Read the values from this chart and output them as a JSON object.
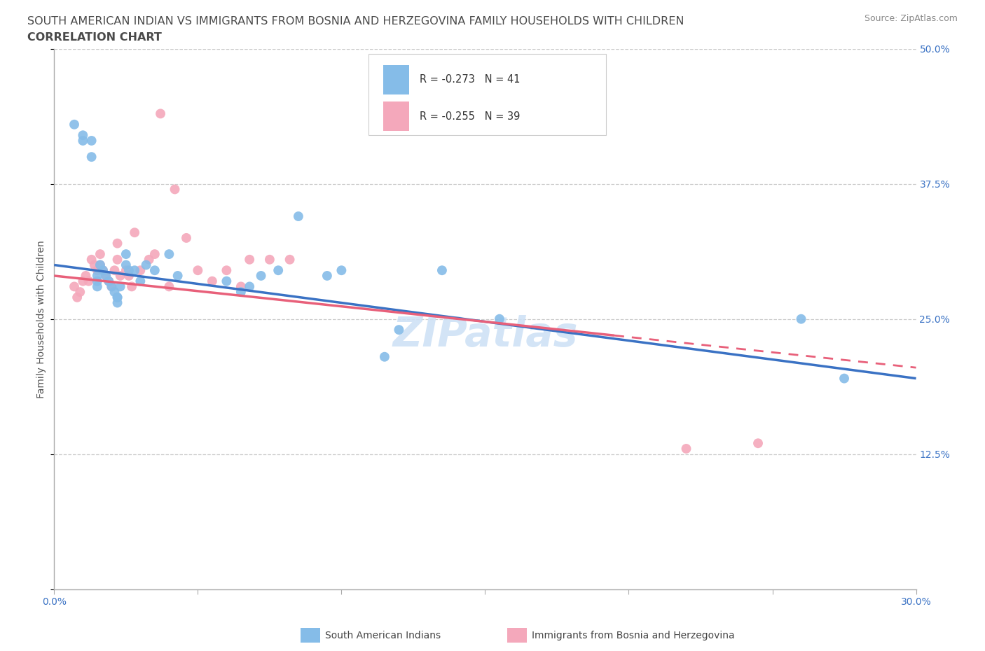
{
  "title_line1": "SOUTH AMERICAN INDIAN VS IMMIGRANTS FROM BOSNIA AND HERZEGOVINA FAMILY HOUSEHOLDS WITH CHILDREN",
  "title_line2": "CORRELATION CHART",
  "source_text": "Source: ZipAtlas.com",
  "ylabel": "Family Households with Children",
  "xlim": [
    0.0,
    0.3
  ],
  "ylim": [
    0.0,
    0.5
  ],
  "xticks": [
    0.0,
    0.05,
    0.1,
    0.15,
    0.2,
    0.25,
    0.3
  ],
  "yticks": [
    0.0,
    0.125,
    0.25,
    0.375,
    0.5
  ],
  "yticklabels": [
    "",
    "12.5%",
    "25.0%",
    "37.5%",
    "50.0%"
  ],
  "color_blue": "#85bce8",
  "color_pink": "#f4a8bb",
  "color_blue_line": "#3a72c4",
  "color_pink_line": "#e8607a",
  "watermark": "ZIPatlas",
  "legend_label1": "South American Indians",
  "legend_label2": "Immigrants from Bosnia and Herzegovina",
  "blue_scatter_x": [
    0.007,
    0.01,
    0.01,
    0.013,
    0.013,
    0.015,
    0.015,
    0.015,
    0.016,
    0.017,
    0.018,
    0.019,
    0.02,
    0.021,
    0.022,
    0.022,
    0.022,
    0.023,
    0.025,
    0.025,
    0.026,
    0.028,
    0.03,
    0.032,
    0.035,
    0.04,
    0.043,
    0.06,
    0.065,
    0.068,
    0.072,
    0.078,
    0.085,
    0.095,
    0.1,
    0.115,
    0.12,
    0.135,
    0.155,
    0.26,
    0.275
  ],
  "blue_scatter_y": [
    0.43,
    0.42,
    0.415,
    0.415,
    0.4,
    0.29,
    0.285,
    0.28,
    0.3,
    0.295,
    0.29,
    0.285,
    0.28,
    0.275,
    0.27,
    0.265,
    0.27,
    0.28,
    0.31,
    0.3,
    0.295,
    0.295,
    0.285,
    0.3,
    0.295,
    0.31,
    0.29,
    0.285,
    0.275,
    0.28,
    0.29,
    0.295,
    0.345,
    0.29,
    0.295,
    0.215,
    0.24,
    0.295,
    0.25,
    0.25,
    0.195
  ],
  "pink_scatter_x": [
    0.007,
    0.008,
    0.009,
    0.01,
    0.011,
    0.012,
    0.013,
    0.014,
    0.015,
    0.016,
    0.016,
    0.017,
    0.018,
    0.019,
    0.02,
    0.021,
    0.022,
    0.022,
    0.023,
    0.025,
    0.026,
    0.027,
    0.028,
    0.03,
    0.033,
    0.035,
    0.037,
    0.04,
    0.042,
    0.046,
    0.05,
    0.055,
    0.06,
    0.065,
    0.068,
    0.075,
    0.082,
    0.22,
    0.245
  ],
  "pink_scatter_y": [
    0.28,
    0.27,
    0.275,
    0.285,
    0.29,
    0.285,
    0.305,
    0.3,
    0.295,
    0.31,
    0.3,
    0.295,
    0.29,
    0.285,
    0.28,
    0.295,
    0.305,
    0.32,
    0.29,
    0.295,
    0.29,
    0.28,
    0.33,
    0.295,
    0.305,
    0.31,
    0.44,
    0.28,
    0.37,
    0.325,
    0.295,
    0.285,
    0.295,
    0.28,
    0.305,
    0.305,
    0.305,
    0.13,
    0.135
  ],
  "blue_regline_x": [
    0.0,
    0.3
  ],
  "blue_regline_y": [
    0.3,
    0.195
  ],
  "pink_regline_x": [
    0.0,
    0.3
  ],
  "pink_regline_y": [
    0.29,
    0.205
  ]
}
